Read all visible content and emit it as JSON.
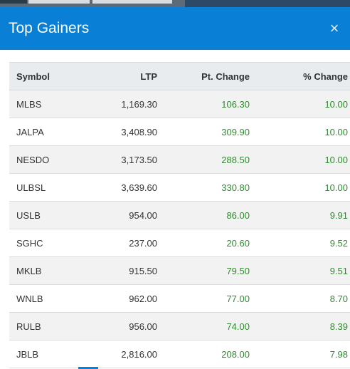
{
  "modal": {
    "title": "Top Gainers",
    "close_glyph": "×"
  },
  "table": {
    "headers": {
      "symbol": "Symbol",
      "ltp": "LTP",
      "pt_change": "Pt. Change",
      "pct_change": "% Change"
    },
    "rows": [
      {
        "symbol": "MLBS",
        "ltp": "1,169.30",
        "pt_change": "106.30",
        "pct_change": "10.00"
      },
      {
        "symbol": "JALPA",
        "ltp": "3,408.90",
        "pt_change": "309.90",
        "pct_change": "10.00"
      },
      {
        "symbol": "NESDO",
        "ltp": "3,173.50",
        "pt_change": "288.50",
        "pct_change": "10.00"
      },
      {
        "symbol": "ULBSL",
        "ltp": "3,639.60",
        "pt_change": "330.80",
        "pct_change": "10.00"
      },
      {
        "symbol": "USLB",
        "ltp": "954.00",
        "pt_change": "86.00",
        "pct_change": "9.91"
      },
      {
        "symbol": "SGHC",
        "ltp": "237.00",
        "pt_change": "20.60",
        "pct_change": "9.52"
      },
      {
        "symbol": "MKLB",
        "ltp": "915.50",
        "pt_change": "79.50",
        "pct_change": "9.51"
      },
      {
        "symbol": "WNLB",
        "ltp": "962.00",
        "pt_change": "77.00",
        "pct_change": "8.70"
      },
      {
        "symbol": "RULB",
        "ltp": "956.00",
        "pt_change": "74.00",
        "pct_change": "8.39"
      },
      {
        "symbol": "JBLB",
        "ltp": "2,816.00",
        "pt_change": "208.00",
        "pct_change": "7.98"
      }
    ]
  },
  "colors": {
    "header_bg": "#0a7fd6",
    "gain_text": "#2f8a2f"
  }
}
